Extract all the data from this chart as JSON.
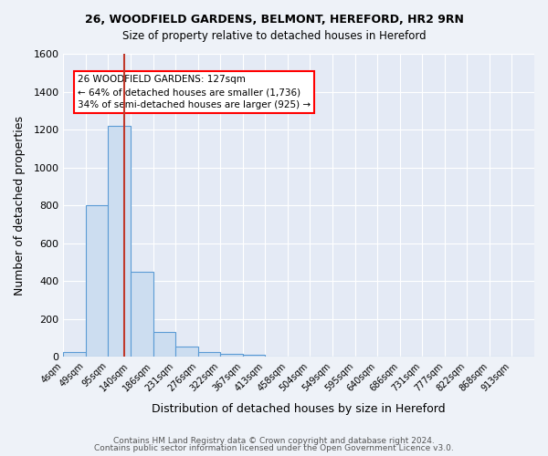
{
  "title1": "26, WOODFIELD GARDENS, BELMONT, HEREFORD, HR2 9RN",
  "title2": "Size of property relative to detached houses in Hereford",
  "xlabel": "Distribution of detached houses by size in Hereford",
  "ylabel": "Number of detached properties",
  "footnote1": "Contains HM Land Registry data © Crown copyright and database right 2024.",
  "footnote2": "Contains public sector information licensed under the Open Government Licence v3.0.",
  "bin_labels": [
    "4sqm",
    "49sqm",
    "95sqm",
    "140sqm",
    "186sqm",
    "231sqm",
    "276sqm",
    "322sqm",
    "367sqm",
    "413sqm",
    "458sqm",
    "504sqm",
    "549sqm",
    "595sqm",
    "640sqm",
    "686sqm",
    "731sqm",
    "777sqm",
    "822sqm",
    "868sqm",
    "913sqm"
  ],
  "bar_heights": [
    25,
    800,
    1220,
    450,
    130,
    55,
    25,
    15,
    12,
    0,
    0,
    0,
    0,
    0,
    0,
    0,
    0,
    0,
    0,
    0,
    0
  ],
  "bar_color": "#ccddf0",
  "bar_edge_color": "#5b9bd5",
  "property_size_sqm": 127,
  "bin_edges_sqm": [
    4,
    49,
    95,
    140,
    186,
    231,
    276,
    322,
    367,
    413,
    458,
    504,
    549,
    595,
    640,
    686,
    731,
    777,
    822,
    868,
    913
  ],
  "annotation_text": "26 WOODFIELD GARDENS: 127sqm\n← 64% of detached houses are smaller (1,736)\n34% of semi-detached houses are larger (925) →",
  "ylim": [
    0,
    1600
  ],
  "yticks": [
    0,
    200,
    400,
    600,
    800,
    1000,
    1200,
    1400,
    1600
  ],
  "bg_color": "#eef2f8",
  "plot_bg_color": "#e4eaf5"
}
